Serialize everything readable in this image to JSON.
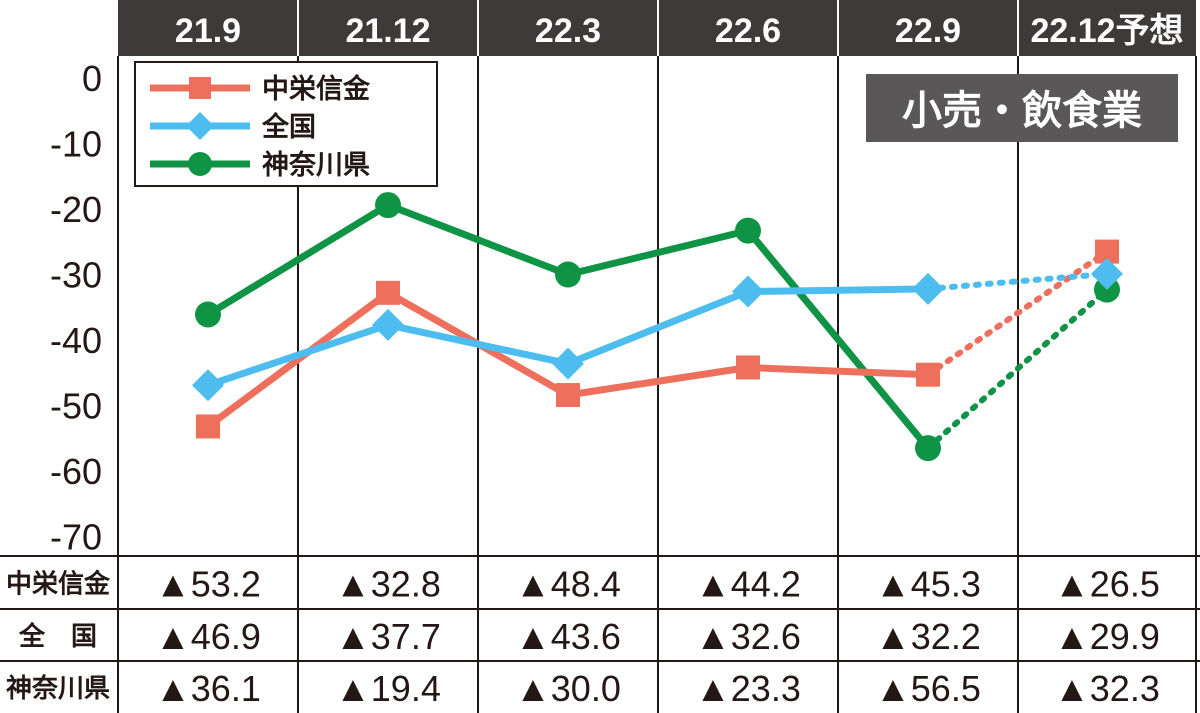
{
  "chart_data": {
    "type": "line",
    "categories": [
      "21.9",
      "21.12",
      "22.3",
      "22.6",
      "22.9",
      "22.12予想"
    ],
    "ylim": [
      -70,
      0
    ],
    "yticks": [
      "0",
      "-10",
      "-20",
      "-30",
      "-40",
      "-50",
      "-60",
      "-70"
    ],
    "ytick_values": [
      0,
      -10,
      -20,
      -30,
      -40,
      -50,
      -60,
      -70
    ],
    "badge": "小売・飲食業",
    "legend_placement": "top-left",
    "forecast_style": "dotted",
    "series": [
      {
        "name": "中栄信金",
        "color": "#EE6F5C",
        "marker": "square",
        "values": [
          -53.2,
          -32.8,
          -48.4,
          -44.2,
          -45.3,
          -26.5
        ],
        "display": [
          "▲53.2",
          "▲32.8",
          "▲48.4",
          "▲44.2",
          "▲45.3",
          "▲26.5"
        ]
      },
      {
        "name": "全国",
        "row_label": "全　国",
        "color": "#4DBDEF",
        "marker": "diamond",
        "values": [
          -46.9,
          -37.7,
          -43.6,
          -32.6,
          -32.2,
          -29.9
        ],
        "display": [
          "▲46.9",
          "▲37.7",
          "▲43.6",
          "▲32.6",
          "▲32.2",
          "▲29.9"
        ]
      },
      {
        "name": "神奈川県",
        "color": "#0F9345",
        "marker": "circle",
        "values": [
          -36.1,
          -19.4,
          -30.0,
          -23.3,
          -56.5,
          -32.3
        ],
        "display": [
          "▲36.1",
          "▲19.4",
          "▲30.0",
          "▲23.3",
          "▲56.5",
          "▲32.3"
        ]
      }
    ]
  }
}
